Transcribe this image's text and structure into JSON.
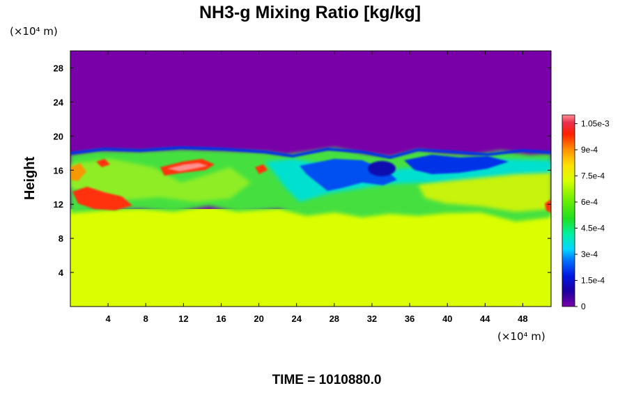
{
  "chart_data": {
    "type": "heatmap",
    "title": "NH3-g Mixing Ratio [kg/kg]",
    "ylabel": "Height",
    "xunit": "(×10⁴ m)",
    "yunit": "(×10⁴ m)",
    "footer": "TIME = 1010880.0",
    "xlim": [
      0,
      51
    ],
    "ylim": [
      0,
      30
    ],
    "xticks": [
      "4",
      "8",
      "12",
      "16",
      "20",
      "24",
      "28",
      "32",
      "36",
      "40",
      "44",
      "48"
    ],
    "xtick_values": [
      4,
      8,
      12,
      16,
      20,
      24,
      28,
      32,
      36,
      40,
      44,
      48
    ],
    "yticks": [
      "4",
      "8",
      "12",
      "16",
      "20",
      "24",
      "28"
    ],
    "ytick_values": [
      4,
      8,
      12,
      16,
      20,
      24,
      28
    ],
    "colorbar": {
      "range": [
        0,
        0.0011
      ],
      "labels": [
        "0",
        "1.5e-4",
        "3e-4",
        "4.5e-4",
        "6e-4",
        "7.5e-4",
        "9e-4",
        "1.05e-3"
      ],
      "label_values": [
        0,
        0.00015,
        0.0003,
        0.00045,
        0.0006,
        0.00075,
        0.0009,
        0.00105
      ]
    },
    "field": {
      "background_above": 0,
      "background_below": 0.00075,
      "mixing_layer_top": 18
    }
  }
}
